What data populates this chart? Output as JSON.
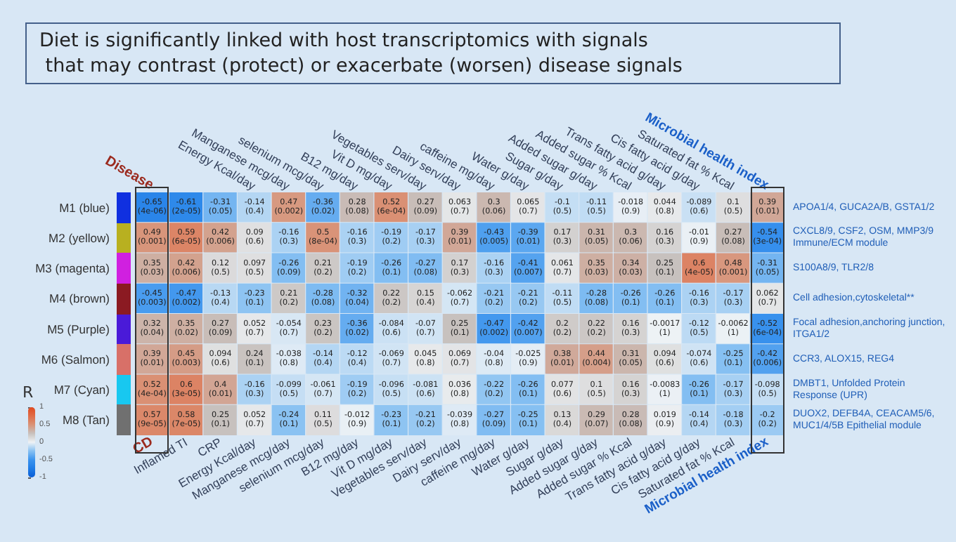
{
  "chart_data": {
    "type": "heatmap",
    "title": "Diet is significantly linked with host transcriptomics with signals that may contrast (protect) or exacerbate (worsen) disease signals",
    "categories": [
      "CD",
      "Inflamed TI",
      "CRP",
      "Energy Kcal/day",
      "Manganese mcg/day",
      "selenium mcg/day",
      "B12 mg/day",
      "Vit D mg/day",
      "Vegetables serv/day",
      "Dairy serv/day",
      "caffeine mg/day",
      "Water g/day",
      "Sugar g/day",
      "Added sugar g/day",
      "Added sugar % Kcal",
      "Trans fatty acid g/day",
      "Cis fatty acid g/day",
      "Saturated fat % Kcal",
      "Microbial health index"
    ],
    "annotations": [
      "Disease",
      "Energy Kcal/day",
      "Manganese mcg/day",
      "selenium mcg/day",
      "B12 mg/day",
      "Vit D mg/day",
      "Vegetables serv/day",
      "Dairy serv/day",
      "caffeine mg/day",
      "Water g/day",
      "Sugar g/day",
      "Added sugar g/day",
      "Added sugar % Kcal",
      "Trans fatty acid g/day",
      "Cis fatty acid g/day",
      "Saturated fat % Kcal",
      "Microbial health index"
    ],
    "y_categories": [
      "M1 (blue)",
      "M2 (yellow)",
      "M3 (magenta)",
      "M4 (brown)",
      "M5 (Purple)",
      "M6 (Salmon)",
      "M7 (Cyan)",
      "M8 (Tan)"
    ],
    "y2_categories": [
      "APOA1/4, GUCA2A/B, GSTA1/2",
      "CXCL8/9, CSF2, OSM, MMP3/9 Immune/ECM module",
      "S100A8/9, TLR2/8",
      "Cell adhesion,cytoskeletal**",
      "Focal adhesion,anchoring junction, ITGA1/2",
      "CCR3, ALOX15, REG4",
      "DMBT1, Unfolded Protein Response (UPR)",
      "DUOX2, DEFB4A, CEACAM5/6, MUC1/4/5B Epithelial module"
    ],
    "cells": [
      [
        -0.65,
        -0.61,
        -0.31,
        -0.14,
        0.47,
        -0.36,
        0.28,
        0.52,
        0.27,
        0.063,
        0.3,
        0.065,
        -0.1,
        -0.11,
        -0.018,
        0.044,
        -0.089,
        0.1,
        0.39
      ],
      [
        0.49,
        0.59,
        0.42,
        0.09,
        -0.16,
        0.5,
        -0.16,
        -0.19,
        -0.17,
        0.39,
        -0.43,
        -0.39,
        0.17,
        0.31,
        0.3,
        0.16,
        -0.01,
        0.27,
        -0.54
      ],
      [
        0.35,
        0.42,
        0.12,
        0.097,
        -0.26,
        0.21,
        -0.19,
        -0.26,
        -0.27,
        0.17,
        -0.16,
        -0.41,
        0.061,
        0.35,
        0.34,
        0.25,
        0.6,
        0.48,
        -0.31
      ],
      [
        -0.45,
        -0.47,
        -0.13,
        -0.23,
        0.21,
        -0.28,
        -0.32,
        0.22,
        0.15,
        -0.062,
        -0.21,
        -0.21,
        -0.11,
        -0.28,
        -0.26,
        -0.26,
        -0.16,
        -0.17,
        0.062
      ],
      [
        0.32,
        0.35,
        0.27,
        0.052,
        -0.054,
        0.23,
        -0.36,
        -0.084,
        -0.07,
        0.25,
        -0.47,
        -0.42,
        0.2,
        0.22,
        0.16,
        -0.0017,
        -0.12,
        -0.0062,
        -0.52
      ],
      [
        0.39,
        0.45,
        0.094,
        0.24,
        -0.038,
        -0.14,
        -0.12,
        -0.069,
        0.045,
        0.069,
        -0.04,
        -0.025,
        0.38,
        0.44,
        0.31,
        0.094,
        -0.074,
        -0.25,
        -0.42
      ],
      [
        0.52,
        0.6,
        0.4,
        -0.16,
        -0.099,
        -0.061,
        -0.19,
        -0.096,
        -0.081,
        0.036,
        -0.22,
        -0.26,
        0.077,
        0.1,
        0.16,
        -0.0083,
        -0.26,
        -0.17,
        -0.098
      ],
      [
        0.57,
        0.58,
        0.25,
        0.052,
        -0.24,
        0.11,
        -0.012,
        -0.23,
        -0.21,
        -0.039,
        -0.27,
        -0.25,
        0.13,
        0.29,
        0.28,
        0.019,
        -0.14,
        -0.18,
        -0.2
      ]
    ],
    "cell_labels": [
      [
        "-0.65\n(4e-06)",
        "-0.61\n(2e-05)",
        "-0.31\n(0.05)",
        "-0.14\n(0.4)",
        "0.47\n(0.002)",
        "-0.36\n(0.02)",
        "0.28\n(0.08)",
        "0.52\n(6e-04)",
        "0.27\n(0.09)",
        "0.063\n(0.7)",
        "0.3\n(0.06)",
        "0.065\n(0.7)",
        "-0.1\n(0.5)",
        "-0.11\n(0.5)",
        "-0.018\n(0.9)",
        "0.044\n(0.8)",
        "-0.089\n(0.6)",
        "0.1\n(0.5)",
        "0.39\n(0.01)"
      ],
      [
        "0.49\n(0.001)",
        "0.59\n(6e-05)",
        "0.42\n(0.006)",
        "0.09\n(0.6)",
        "-0.16\n(0.3)",
        "0.5\n(8e-04)",
        "-0.16\n(0.3)",
        "-0.19\n(0.2)",
        "-0.17\n(0.3)",
        "0.39\n(0.01)",
        "-0.43\n(0.005)",
        "-0.39\n(0.01)",
        "0.17\n(0.3)",
        "0.31\n(0.05)",
        "0.3\n(0.06)",
        "0.16\n(0.3)",
        "-0.01\n(0.9)",
        "0.27\n(0.08)",
        "-0.54\n(3e-04)"
      ],
      [
        "0.35\n(0.03)",
        "0.42\n(0.006)",
        "0.12\n(0.5)",
        "0.097\n(0.5)",
        "-0.26\n(0.09)",
        "0.21\n(0.2)",
        "-0.19\n(0.2)",
        "-0.26\n(0.1)",
        "-0.27\n(0.08)",
        "0.17\n(0.3)",
        "-0.16\n(0.3)",
        "-0.41\n(0.007)",
        "0.061\n(0.7)",
        "0.35\n(0.03)",
        "0.34\n(0.03)",
        "0.25\n(0.1)",
        "0.6\n(4e-05)",
        "0.48\n(0.001)",
        "-0.31\n(0.05)"
      ],
      [
        "-0.45\n(0.003)",
        "-0.47\n(0.002)",
        "-0.13\n(0.4)",
        "-0.23\n(0.1)",
        "0.21\n(0.2)",
        "-0.28\n(0.08)",
        "-0.32\n(0.04)",
        "0.22\n(0.2)",
        "0.15\n(0.4)",
        "-0.062\n(0.7)",
        "-0.21\n(0.2)",
        "-0.21\n(0.2)",
        "-0.11\n(0.5)",
        "-0.28\n(0.08)",
        "-0.26\n(0.1)",
        "-0.26\n(0.1)",
        "-0.16\n(0.3)",
        "-0.17\n(0.3)",
        "0.062\n(0.7)"
      ],
      [
        "0.32\n(0.04)",
        "0.35\n(0.02)",
        "0.27\n(0.09)",
        "0.052\n(0.7)",
        "-0.054\n(0.7)",
        "0.23\n(0.2)",
        "-0.36\n(0.02)",
        "-0.084\n(0.6)",
        "-0.07\n(0.7)",
        "0.25\n(0.1)",
        "-0.47\n(0.002)",
        "-0.42\n(0.007)",
        "0.2\n(0.2)",
        "0.22\n(0.2)",
        "0.16\n(0.3)",
        "-0.0017\n(1)",
        "-0.12\n(0.5)",
        "-0.0062\n(1)",
        "-0.52\n(6e-04)"
      ],
      [
        "0.39\n(0.01)",
        "0.45\n(0.003)",
        "0.094\n(0.6)",
        "0.24\n(0.1)",
        "-0.038\n(0.8)",
        "-0.14\n(0.4)",
        "-0.12\n(0.4)",
        "-0.069\n(0.7)",
        "0.045\n(0.8)",
        "0.069\n(0.7)",
        "-0.04\n(0.8)",
        "-0.025\n(0.9)",
        "0.38\n(0.01)",
        "0.44\n(0.004)",
        "0.31\n(0.05)",
        "0.094\n(0.6)",
        "-0.074\n(0.6)",
        "-0.25\n(0.1)",
        "-0.42\n(0.006)"
      ],
      [
        "0.52\n(4e-04)",
        "0.6\n(3e-05)",
        "0.4\n(0.01)",
        "-0.16\n(0.3)",
        "-0.099\n(0.5)",
        "-0.061\n(0.7)",
        "-0.19\n(0.2)",
        "-0.096\n(0.5)",
        "-0.081\n(0.6)",
        "0.036\n(0.8)",
        "-0.22\n(0.2)",
        "-0.26\n(0.1)",
        "0.077\n(0.6)",
        "0.1\n(0.5)",
        "0.16\n(0.3)",
        "-0.0083\n(1)",
        "-0.26\n(0.1)",
        "-0.17\n(0.3)",
        "-0.098\n(0.5)"
      ],
      [
        "0.57\n(9e-05)",
        "0.58\n(7e-05)",
        "0.25\n(0.1)",
        "0.052\n(0.7)",
        "-0.24\n(0.1)",
        "0.11\n(0.5)",
        "-0.012\n(0.9)",
        "-0.23\n(0.1)",
        "-0.21\n(0.2)",
        "-0.039\n(0.8)",
        "-0.27\n(0.09)",
        "-0.25\n(0.1)",
        "0.13\n(0.4)",
        "0.29\n(0.07)",
        "0.28\n(0.08)",
        "0.019\n(0.9)",
        "-0.14\n(0.4)",
        "-0.18\n(0.3)",
        "-0.2\n(0.2)"
      ]
    ],
    "clabel": "R",
    "clim": [
      -1,
      1
    ],
    "cticks": [
      -1,
      -0.5,
      0,
      0.5,
      1
    ]
  }
}
